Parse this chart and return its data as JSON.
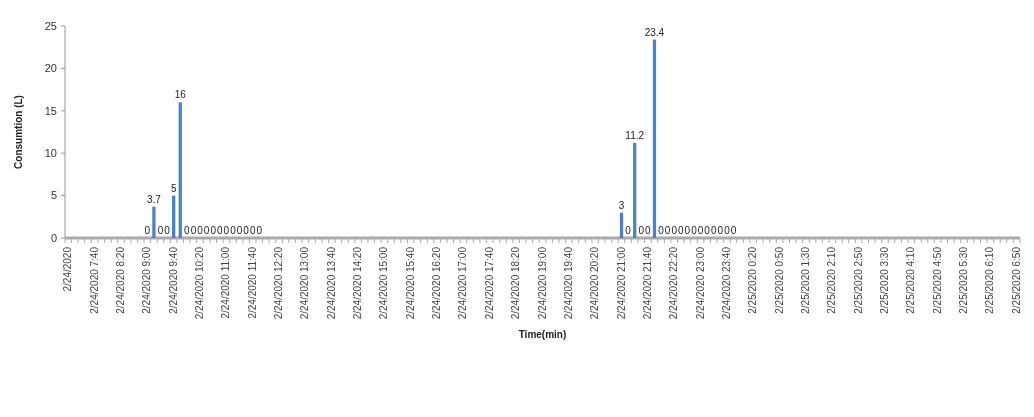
{
  "chart_data": {
    "type": "bar",
    "xlabel": "Time(min)",
    "ylabel": "Consumtion (L)",
    "color": "#4f81bd",
    "categories": [
      "2/24/2020",
      null,
      null,
      null,
      "2/24/2020 7:40",
      null,
      null,
      null,
      "2/24/2020 8:20",
      null,
      null,
      null,
      "2/24/2020 9:00",
      null,
      null,
      null,
      "2/24/2020 9:40",
      null,
      null,
      null,
      "2/24/2020 10:20",
      null,
      null,
      null,
      "2/24/2020 11:00",
      null,
      null,
      null,
      "2/24/2020 11:40",
      null,
      null,
      null,
      "2/24/2020 12:20",
      null,
      null,
      null,
      "2/24/2020 13:00",
      null,
      null,
      null,
      "2/24/2020 13:40",
      null,
      null,
      null,
      "2/24/2020 14:20",
      null,
      null,
      null,
      "2/24/2020 15:00",
      null,
      null,
      null,
      "2/24/2020 15:40",
      null,
      null,
      null,
      "2/24/2020 16:20",
      null,
      null,
      null,
      "2/24/2020 17:00",
      null,
      null,
      null,
      "2/24/2020 17:40",
      null,
      null,
      null,
      "2/24/2020 18:20",
      null,
      null,
      null,
      "2/24/2020 19:00",
      null,
      null,
      null,
      "2/24/2020 19:40",
      null,
      null,
      null,
      "2/24/2020 20:20",
      null,
      null,
      null,
      "2/24/2020 21:00",
      null,
      null,
      null,
      "2/24/2020 21:40",
      null,
      null,
      null,
      "2/24/2020 22:20",
      null,
      null,
      null,
      "2/24/2020 23:00",
      null,
      null,
      null,
      "2/24/2020 23:40",
      null,
      null,
      null,
      "2/25/2020 0:20",
      null,
      null,
      null,
      "2/25/2020 0:50",
      null,
      null,
      null,
      "2/25/2020 1:30",
      null,
      null,
      null,
      "2/25/2020 2:10",
      null,
      null,
      null,
      "2/25/2020 2:50",
      null,
      null,
      null,
      "2/25/2020 3:30",
      null,
      null,
      null,
      "2/25/2020 4:10",
      null,
      null,
      null,
      "2/25/2020 4:50",
      null,
      null,
      null,
      "2/25/2020 5:30",
      null,
      null,
      null,
      "2/25/2020 6:10",
      null,
      null,
      null,
      "2/25/2020 6:50"
    ],
    "values": [
      null,
      null,
      null,
      null,
      null,
      null,
      null,
      null,
      null,
      null,
      null,
      null,
      0,
      3.7,
      0,
      0,
      5,
      16,
      0,
      0,
      0,
      0,
      0,
      0,
      0,
      0,
      0,
      0,
      0,
      0,
      null,
      null,
      null,
      null,
      null,
      null,
      null,
      null,
      null,
      null,
      null,
      null,
      null,
      null,
      null,
      null,
      null,
      null,
      null,
      null,
      null,
      null,
      null,
      null,
      null,
      null,
      null,
      null,
      null,
      null,
      null,
      null,
      null,
      null,
      null,
      null,
      null,
      null,
      null,
      null,
      null,
      null,
      null,
      null,
      null,
      null,
      null,
      null,
      null,
      null,
      null,
      null,
      null,
      null,
      3,
      0,
      11.2,
      0,
      0,
      23.4,
      0,
      0,
      0,
      0,
      0,
      0,
      0,
      0,
      0,
      0,
      0,
      0,
      null,
      null,
      null,
      null,
      null,
      null,
      null,
      null,
      null,
      null,
      null,
      null,
      null,
      null,
      null,
      null,
      null,
      null,
      null,
      null,
      null,
      null,
      null,
      null,
      null,
      null,
      null,
      null,
      null,
      null,
      null,
      null,
      null,
      null,
      null,
      null,
      null,
      null,
      null,
      null,
      null,
      null,
      null
    ],
    "ylim": [
      0,
      25
    ],
    "yticks": [
      0,
      5,
      10,
      15,
      20,
      25
    ],
    "data_labels": true
  }
}
